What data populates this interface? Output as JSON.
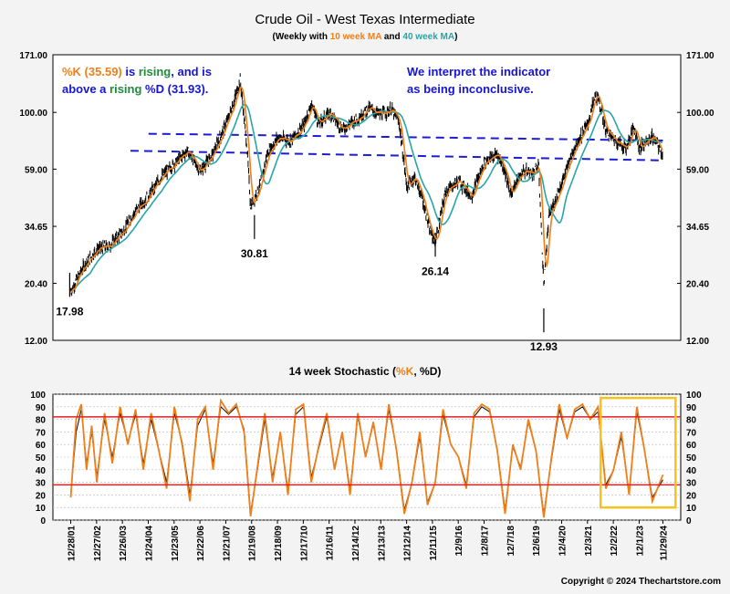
{
  "colors": {
    "orange": "#f07f19",
    "teal": "#27a5a7",
    "green": "#1e8c3a",
    "blue": "#1515d5",
    "red": "#e02020",
    "yellow": "#f6c21c",
    "dashed": "#1c1cd0",
    "price": "#000000"
  },
  "chart_data": [
    {
      "type": "line",
      "title": "Crude Oil - West Texas Intermediate",
      "subtitle": {
        "prefix": "(Weekly with ",
        "ma10": "10 week MA",
        "mid": " and ",
        "ma40": "40 week MA",
        "suffix": ")"
      },
      "y_scale": "log",
      "ylim": [
        12,
        171
      ],
      "yticks": [
        "171.00",
        "100.00",
        "59.00",
        "34.65",
        "20.40",
        "12.00"
      ],
      "ytick_values": [
        171,
        100,
        59,
        34.65,
        20.4,
        12
      ],
      "series": [
        {
          "name": "10 week MA",
          "color": "#f07f19"
        },
        {
          "name": "40 week MA",
          "color": "#27a5a7"
        }
      ],
      "x": [
        2001.99,
        2002.5,
        2003.0,
        2003.5,
        2004.0,
        2004.5,
        2005.0,
        2005.5,
        2006.0,
        2006.5,
        2007.0,
        2007.5,
        2008.0,
        2008.3,
        2008.55,
        2008.8,
        2008.95,
        2009.3,
        2009.6,
        2010.0,
        2010.5,
        2011.0,
        2011.3,
        2011.6,
        2012.0,
        2012.5,
        2013.0,
        2013.5,
        2014.0,
        2014.4,
        2014.7,
        2015.0,
        2015.3,
        2015.6,
        2015.9,
        2016.1,
        2016.5,
        2017.0,
        2017.5,
        2018.0,
        2018.5,
        2018.8,
        2019.0,
        2019.5,
        2019.9,
        2020.1,
        2020.3,
        2020.5,
        2021.0,
        2021.5,
        2022.0,
        2022.3,
        2022.45,
        2022.7,
        2023.0,
        2023.5,
        2023.8,
        2024.0,
        2024.5,
        2024.91
      ],
      "y": [
        19,
        24,
        28,
        29,
        33,
        40,
        46,
        55,
        62,
        70,
        58,
        68,
        90,
        110,
        135,
        75,
        42,
        50,
        68,
        79,
        77,
        88,
        108,
        90,
        100,
        86,
        93,
        104,
        98,
        103,
        91,
        50,
        55,
        45,
        33,
        30,
        48,
        53,
        46,
        63,
        68,
        58,
        47,
        58,
        57,
        61,
        20,
        38,
        52,
        73,
        90,
        118,
        110,
        85,
        78,
        72,
        88,
        72,
        80,
        68
      ],
      "lows": [
        {
          "label": "17.98",
          "x": 2001.95,
          "y": 17.98
        },
        {
          "label": "30.81",
          "x": 2009.1,
          "y": 30.81
        },
        {
          "label": "26.14",
          "x": 2016.1,
          "y": 26.14
        },
        {
          "label": "12.93",
          "x": 2020.3,
          "y": 12.93
        }
      ],
      "annotations": {
        "left": {
          "line1": [
            {
              "text": "%K (35.59)",
              "color": "#f07f19"
            },
            {
              "text": " is ",
              "color": "#1515d5"
            },
            {
              "text": "rising",
              "color": "#1e8c3a"
            },
            {
              "text": ", and is",
              "color": "#1515d5"
            }
          ],
          "line2": [
            {
              "text": "above a ",
              "color": "#1515d5"
            },
            {
              "text": "rising",
              "color": "#1e8c3a"
            },
            {
              "text": " %D (31.93).",
              "color": "#1515d5"
            }
          ]
        },
        "right": {
          "line1": "We interpret the indicator",
          "line2": "as being inconclusive."
        }
      },
      "channel_upper": [
        {
          "x": 2005.0,
          "y": 82
        },
        {
          "x": 2024.91,
          "y": 77
        }
      ],
      "channel_lower": [
        {
          "x": 2004.3,
          "y": 70
        },
        {
          "x": 2024.91,
          "y": 64
        }
      ]
    },
    {
      "type": "line",
      "title": {
        "prefix": "14 week Stochastic (",
        "k": "%K",
        "sep": ", ",
        "d": "%D",
        "suffix": ")"
      },
      "ylim": [
        0,
        100
      ],
      "yticks": [
        0,
        10,
        20,
        30,
        40,
        50,
        60,
        70,
        80,
        90,
        100
      ],
      "hlines": [
        82,
        28
      ],
      "series": [
        {
          "name": "%K",
          "color": "#f07f19"
        },
        {
          "name": "%D",
          "color": "#000000"
        }
      ],
      "x": [
        2001.99,
        2002.2,
        2002.4,
        2002.6,
        2002.8,
        2003.0,
        2003.3,
        2003.6,
        2003.9,
        2004.2,
        2004.5,
        2004.8,
        2005.1,
        2005.4,
        2005.7,
        2006.0,
        2006.3,
        2006.6,
        2006.9,
        2007.2,
        2007.5,
        2007.8,
        2008.1,
        2008.4,
        2008.7,
        2008.95,
        2009.2,
        2009.5,
        2009.8,
        2010.1,
        2010.4,
        2010.7,
        2011.0,
        2011.3,
        2011.6,
        2011.9,
        2012.2,
        2012.5,
        2012.8,
        2013.1,
        2013.4,
        2013.7,
        2014.0,
        2014.3,
        2014.6,
        2014.9,
        2015.2,
        2015.5,
        2015.8,
        2016.1,
        2016.4,
        2016.7,
        2017.0,
        2017.3,
        2017.6,
        2017.9,
        2018.2,
        2018.5,
        2018.8,
        2019.1,
        2019.4,
        2019.7,
        2020.0,
        2020.3,
        2020.6,
        2020.9,
        2021.2,
        2021.5,
        2021.8,
        2022.1,
        2022.4,
        2022.7,
        2023.0,
        2023.3,
        2023.6,
        2023.9,
        2024.2,
        2024.5,
        2024.91
      ],
      "k": [
        18,
        80,
        92,
        40,
        75,
        30,
        85,
        45,
        90,
        60,
        88,
        40,
        85,
        55,
        25,
        90,
        60,
        15,
        80,
        90,
        40,
        95,
        85,
        92,
        70,
        3,
        40,
        85,
        30,
        70,
        20,
        88,
        92,
        30,
        60,
        85,
        40,
        70,
        20,
        85,
        50,
        78,
        40,
        92,
        55,
        5,
        30,
        70,
        12,
        30,
        88,
        60,
        50,
        25,
        85,
        92,
        88,
        55,
        5,
        60,
        40,
        80,
        55,
        2,
        50,
        92,
        65,
        88,
        92,
        80,
        90,
        25,
        40,
        70,
        20,
        90,
        55,
        15,
        36
      ],
      "d": [
        20,
        70,
        88,
        45,
        70,
        35,
        80,
        50,
        85,
        62,
        84,
        45,
        80,
        55,
        30,
        85,
        62,
        20,
        75,
        88,
        45,
        90,
        84,
        90,
        72,
        6,
        38,
        80,
        34,
        68,
        24,
        84,
        90,
        34,
        58,
        82,
        42,
        68,
        24,
        82,
        52,
        76,
        42,
        88,
        56,
        8,
        30,
        66,
        14,
        30,
        84,
        60,
        50,
        28,
        82,
        90,
        86,
        56,
        8,
        58,
        42,
        78,
        55,
        5,
        48,
        88,
        65,
        86,
        90,
        80,
        86,
        28,
        40,
        66,
        22,
        86,
        55,
        18,
        32
      ],
      "highlight": {
        "x0": 2022.5,
        "x1": 2025.4,
        "y0": 10,
        "y1": 97
      },
      "x_tick_labels": [
        "12/28/01",
        "12/27/02",
        "12/26/03",
        "12/24/04",
        "12/23/05",
        "12/22/06",
        "12/21/07",
        "12/19/08",
        "12/18/09",
        "12/17/10",
        "12/16/11",
        "12/14/12",
        "12/13/13",
        "12/12/14",
        "12/11/15",
        "12/9/16",
        "12/8/17",
        "12/7/18",
        "12/6/19",
        "12/4/20",
        "12/3/21",
        "12/2/22",
        "12/1/23",
        "11/29/24"
      ],
      "x_tick_values": [
        2001.99,
        2002.99,
        2003.99,
        2004.99,
        2005.99,
        2006.99,
        2007.99,
        2008.99,
        2009.99,
        2010.99,
        2011.99,
        2012.99,
        2013.99,
        2014.99,
        2015.99,
        2016.99,
        2017.99,
        2018.99,
        2019.99,
        2020.99,
        2021.99,
        2022.99,
        2023.99,
        2024.91
      ]
    }
  ],
  "copyright": "Copyright © 2024 Thechartstore.com"
}
